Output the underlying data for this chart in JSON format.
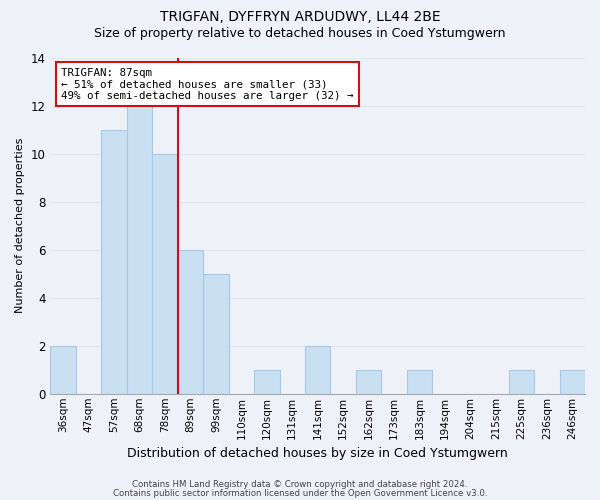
{
  "title": "TRIGFAN, DYFFRYN ARDUDWY, LL44 2BE",
  "subtitle": "Size of property relative to detached houses in Coed Ystumgwern",
  "xlabel": "Distribution of detached houses by size in Coed Ystumgwern",
  "ylabel": "Number of detached properties",
  "footer_line1": "Contains HM Land Registry data © Crown copyright and database right 2024.",
  "footer_line2": "Contains public sector information licensed under the Open Government Licence v3.0.",
  "bin_labels": [
    "36sqm",
    "47sqm",
    "57sqm",
    "68sqm",
    "78sqm",
    "89sqm",
    "99sqm",
    "110sqm",
    "120sqm",
    "131sqm",
    "141sqm",
    "152sqm",
    "162sqm",
    "173sqm",
    "183sqm",
    "194sqm",
    "204sqm",
    "215sqm",
    "225sqm",
    "236sqm",
    "246sqm"
  ],
  "bar_values": [
    2,
    0,
    11,
    12,
    10,
    6,
    5,
    0,
    1,
    0,
    2,
    0,
    1,
    0,
    1,
    0,
    0,
    0,
    1,
    0,
    1
  ],
  "bar_color": "#c9dff2",
  "bar_edge_color": "#a8c8e8",
  "red_line_after_index": 4,
  "highlight_line_color": "#cc1111",
  "annotation_line1": "TRIGFAN: 87sqm",
  "annotation_line2": "← 51% of detached houses are smaller (33)",
  "annotation_line3": "49% of semi-detached houses are larger (32) →",
  "annotation_box_color": "#ffffff",
  "annotation_box_edge_color": "#cc1111",
  "ylim": [
    0,
    14
  ],
  "yticks": [
    0,
    2,
    4,
    6,
    8,
    10,
    12,
    14
  ],
  "grid_color": "#dde8f0",
  "background_color": "#eef2f8",
  "title_fontsize": 10,
  "subtitle_fontsize": 9
}
